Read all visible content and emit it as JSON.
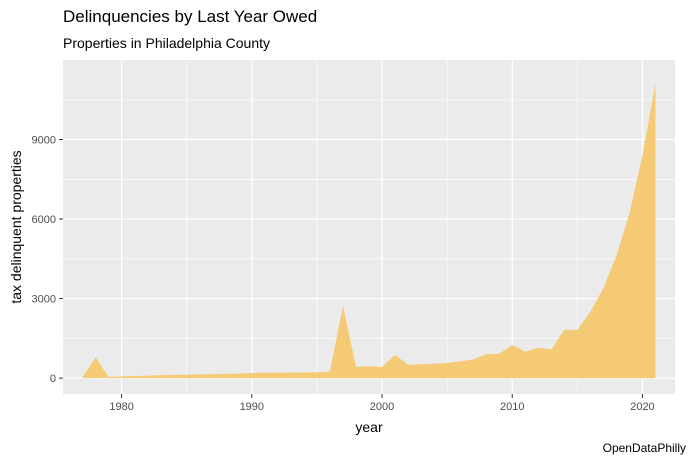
{
  "title": "Delinquencies by Last Year Owed",
  "subtitle": "Properties in Philadelphia County",
  "caption": "OpenDataPhilly",
  "chart_data": {
    "type": "area",
    "title": "Delinquencies by Last Year Owed",
    "subtitle": "Properties in Philadelphia County",
    "xlabel": "year",
    "ylabel": "tax delinquent properties",
    "xlim": [
      1975.5,
      2022.5
    ],
    "ylim": [
      -600,
      12000
    ],
    "x_ticks": [
      1980,
      1990,
      2000,
      2010,
      2020
    ],
    "y_ticks": [
      0,
      3000,
      6000,
      9000
    ],
    "grid": true,
    "fill_color": "#F5C86E",
    "panel_color": "#EBEBEB",
    "x": [
      1977,
      1978,
      1979,
      1980,
      1981,
      1982,
      1983,
      1984,
      1985,
      1986,
      1987,
      1988,
      1989,
      1990,
      1991,
      1992,
      1993,
      1994,
      1995,
      1996,
      1997,
      1998,
      1999,
      2000,
      2001,
      2002,
      2003,
      2004,
      2005,
      2006,
      2007,
      2008,
      2009,
      2010,
      2011,
      2012,
      2013,
      2014,
      2015,
      2016,
      2017,
      2018,
      2019,
      2020,
      2021
    ],
    "y": [
      30,
      780,
      40,
      60,
      80,
      90,
      110,
      120,
      130,
      140,
      150,
      160,
      170,
      190,
      200,
      200,
      210,
      210,
      220,
      250,
      2720,
      430,
      440,
      420,
      880,
      500,
      520,
      540,
      570,
      630,
      700,
      900,
      920,
      1250,
      1000,
      1150,
      1080,
      1820,
      1820,
      2500,
      3400,
      4600,
      6200,
      8400,
      11100
    ]
  }
}
